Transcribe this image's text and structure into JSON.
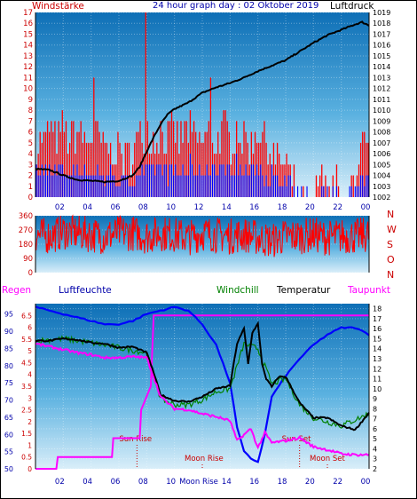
{
  "header": {
    "left_label": "Windstärke",
    "title": "24 hour graph day : 02 Oktober 2019",
    "right_label": "Luftdruck"
  },
  "colors": {
    "wind": "#ff0000",
    "gust_bar": "#ff0000",
    "wind_avg": "#0000ff",
    "pressure": "#000000",
    "direction": "#ff0000",
    "humidity": "#0000ff",
    "temperature": "#000000",
    "windchill": "#008000",
    "dewpoint": "#ff00ff",
    "rain": "#ff00ff",
    "marker": "#cc0000",
    "axis_left": "#cc0000",
    "axis_right": "#000000",
    "humidity_axis": "#0000aa",
    "panel_top": "#0e6fb6",
    "panel_bottom": "#d9eef9"
  },
  "x_ticks": [
    "02",
    "04",
    "06",
    "08",
    "10",
    "12",
    "14",
    "16",
    "18",
    "20",
    "22",
    "00"
  ],
  "bottom_x_ticks": [
    "02",
    "04",
    "06",
    "08",
    "10",
    "Moon Rise",
    "14",
    "16",
    "18",
    "20",
    "22",
    "00"
  ],
  "chart_data": [
    {
      "type": "line",
      "title": "Windstärke / Luftdruck",
      "x_range_hours": [
        0,
        24
      ],
      "left_axis": {
        "label": "Windstärke",
        "ticks": [
          "0",
          "1",
          "2",
          "3",
          "4",
          "5",
          "6",
          "7",
          "8",
          "9",
          "10",
          "11",
          "12",
          "13",
          "14",
          "15",
          "16",
          "17"
        ],
        "range": [
          0,
          17
        ]
      },
      "right_axis": {
        "label": "Luftdruck",
        "ticks": [
          "1002",
          "1003",
          "1004",
          "1005",
          "1006",
          "1007",
          "1008",
          "1009",
          "1010",
          "1011",
          "1012",
          "1013",
          "1014",
          "1015",
          "1016",
          "1017",
          "1018",
          "1019"
        ],
        "range": [
          1002,
          1019
        ]
      },
      "series": [
        {
          "name": "Windstärke",
          "axis": "left",
          "hours": [
            0,
            0.5,
            1,
            1.5,
            2,
            2.5,
            3,
            3.5,
            4,
            4.5,
            5,
            5.5,
            6,
            6.5,
            7,
            7.5,
            8,
            8.5,
            9,
            9.5,
            10,
            10.5,
            11,
            11.5,
            12,
            12.5,
            13,
            13.5,
            14,
            14.5,
            15,
            15.5,
            16,
            16.5,
            17,
            17.5,
            18,
            18.5,
            19,
            19.5,
            20,
            20.5,
            21,
            21.5,
            22,
            22.5,
            23,
            23.5,
            24
          ],
          "values": [
            5,
            5,
            6,
            5,
            6,
            5,
            6,
            5,
            5,
            5,
            4,
            4,
            4,
            3,
            4,
            5,
            6,
            5,
            6,
            5,
            6,
            5,
            6,
            5,
            5,
            6,
            5,
            6,
            5,
            6,
            5,
            5,
            6,
            5,
            4,
            3,
            3,
            1,
            0,
            0,
            0,
            2,
            0,
            1,
            0,
            0,
            2,
            5,
            3
          ]
        },
        {
          "name": "Luftdruck",
          "axis": "right",
          "hours": [
            0,
            1,
            2,
            3,
            4,
            5,
            6,
            7,
            7.5,
            8,
            8.5,
            9,
            9.5,
            10,
            11,
            12,
            13,
            14,
            15,
            16,
            17,
            18,
            19,
            20,
            21,
            22,
            23,
            23.5,
            24
          ],
          "values": [
            1004.6,
            1004.5,
            1004.0,
            1003.6,
            1003.5,
            1003.4,
            1003.5,
            1004.0,
            1004.8,
            1006.2,
            1007.5,
            1008.7,
            1009.6,
            1010.1,
            1010.7,
            1011.6,
            1012.1,
            1012.5,
            1013.0,
            1013.6,
            1014.1,
            1014.6,
            1015.4,
            1016.2,
            1016.9,
            1017.4,
            1017.9,
            1018.1,
            1017.8
          ]
        }
      ]
    },
    {
      "type": "line",
      "title": "Windrichtung",
      "x_range_hours": [
        0,
        24
      ],
      "left_axis": {
        "ticks": [
          "0",
          "90",
          "180",
          "270",
          "360"
        ],
        "range": [
          0,
          360
        ]
      },
      "right_axis": {
        "ticks": [
          "N",
          "W",
          "S",
          "O",
          "N"
        ]
      },
      "series": [
        {
          "name": "Windrichtung",
          "hours": [
            0,
            1,
            2,
            3,
            4,
            5,
            6,
            7,
            8,
            9,
            10,
            11,
            12,
            13,
            14,
            15,
            16,
            17,
            18,
            19,
            20,
            21,
            22,
            23,
            24
          ],
          "values": [
            240,
            230,
            260,
            250,
            240,
            230,
            250,
            250,
            230,
            250,
            240,
            220,
            250,
            240,
            230,
            240,
            220,
            200,
            230,
            230,
            240,
            220,
            230,
            230,
            240
          ]
        }
      ]
    },
    {
      "type": "line",
      "title": "Regen / Luftfeuchte / Windchill / Temperatur / Taupunkt",
      "x_range_hours": [
        0,
        24
      ],
      "legend": [
        "Regen",
        "Luftfeuchte",
        "Windchill",
        "Temperatur",
        "Taupunkt"
      ],
      "rain_axis": {
        "label": "Regen",
        "ticks": [
          "0",
          "0.5",
          "1",
          "1.5",
          "2",
          "2.5",
          "3",
          "3.5",
          "4",
          "4.5",
          "5",
          "5.5",
          "6",
          "6.5"
        ],
        "range": [
          0,
          7
        ]
      },
      "humidity_axis": {
        "label": "Luftfeuchte",
        "ticks": [
          "50",
          "55",
          "60",
          "65",
          "70",
          "75",
          "80",
          "85",
          "90",
          "95"
        ],
        "range": [
          50,
          98
        ]
      },
      "temp_axis": {
        "ticks": [
          "2",
          "3",
          "4",
          "5",
          "6",
          "7",
          "8",
          "9",
          "10",
          "11",
          "12",
          "13",
          "14",
          "15",
          "16",
          "17",
          "18"
        ],
        "range": [
          2,
          18.5
        ]
      },
      "annotations": [
        {
          "label": "Sun Rise",
          "hour": 7.3
        },
        {
          "label": "Moon Rise",
          "hour": 12.0
        },
        {
          "label": "Sun Set",
          "hour": 19.0
        },
        {
          "label": "Moon Set",
          "hour": 21.0
        }
      ],
      "series": [
        {
          "name": "Regen",
          "axis": "rain",
          "hours": [
            0,
            1.5,
            1.6,
            5.5,
            5.6,
            7.5,
            7.6,
            8.3,
            8.5,
            24
          ],
          "values": [
            0,
            0,
            0.5,
            0.5,
            1.3,
            1.3,
            2.5,
            3.5,
            6.5,
            6.5
          ]
        },
        {
          "name": "Luftfeuchte",
          "axis": "humidity",
          "hours": [
            0,
            1,
            2,
            3,
            4,
            5,
            6,
            7,
            8,
            9,
            10,
            11,
            12,
            13,
            14,
            14.5,
            15,
            15.5,
            16,
            16.5,
            17,
            18,
            19,
            20,
            21,
            22,
            23,
            24
          ],
          "values": [
            97,
            96,
            95,
            94,
            93,
            92,
            92,
            93,
            95,
            96,
            97,
            96,
            92,
            86,
            75,
            62,
            55,
            53,
            52,
            60,
            71,
            77,
            82,
            86,
            89,
            91,
            91,
            89
          ]
        },
        {
          "name": "Temperatur",
          "axis": "temp",
          "hours": [
            0,
            1,
            2,
            3,
            4,
            5,
            6,
            7,
            8,
            8.5,
            9,
            10,
            11,
            12,
            13,
            14,
            14.5,
            15,
            15.3,
            15.6,
            16,
            16.3,
            16.6,
            17,
            17.5,
            18,
            19,
            20,
            21,
            22,
            23,
            24
          ],
          "values": [
            14.8,
            14.8,
            15.0,
            14.9,
            14.6,
            14.5,
            14.1,
            14.2,
            13.6,
            11.6,
            9.4,
            8.8,
            8.7,
            9.2,
            10.0,
            10.3,
            14.5,
            16.0,
            12.5,
            15.6,
            16.5,
            12.5,
            11.0,
            10.2,
            11.2,
            11.2,
            8.6,
            7.1,
            7.1,
            6.3,
            5.9,
            7.6
          ]
        },
        {
          "name": "Windchill",
          "axis": "temp",
          "hours": [
            0,
            2,
            4,
            6,
            8,
            8.5,
            9,
            10,
            11,
            12,
            13,
            14,
            15,
            16,
            17,
            18,
            19,
            20,
            22,
            24
          ],
          "values": [
            14.8,
            15.0,
            14.6,
            14.1,
            13.6,
            11.5,
            9.0,
            8.4,
            8.4,
            8.9,
            9.7,
            10.0,
            14.5,
            14.0,
            10.5,
            11.0,
            8.4,
            7.1,
            6.3,
            7.5
          ]
        },
        {
          "name": "Taupunkt",
          "axis": "temp",
          "hours": [
            0,
            1,
            2,
            3,
            4,
            5,
            6,
            7,
            8,
            9,
            10,
            11,
            12,
            13,
            14,
            14.5,
            15,
            15.5,
            16,
            16.5,
            17,
            18,
            19,
            20,
            21,
            22,
            23,
            24
          ],
          "values": [
            14.5,
            14.2,
            13.9,
            13.6,
            13.4,
            13.1,
            13.1,
            13.2,
            13.1,
            9.2,
            8.0,
            7.9,
            7.5,
            7.2,
            6.8,
            4.8,
            5.4,
            6.0,
            4.1,
            5.6,
            4.6,
            4.8,
            5.1,
            4.2,
            3.9,
            3.5,
            3.4,
            3.4
          ]
        }
      ]
    }
  ]
}
